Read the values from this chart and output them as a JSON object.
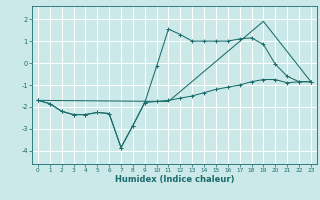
{
  "xlabel": "Humidex (Indice chaleur)",
  "background_color": "#cce9e9",
  "grid_color": "#ffffff",
  "line_color": "#1a6b6b",
  "xlim": [
    -0.5,
    23.5
  ],
  "ylim": [
    -4.6,
    2.6
  ],
  "yticks": [
    2,
    1,
    0,
    -1,
    -2,
    -3,
    -4
  ],
  "xticks": [
    0,
    1,
    2,
    3,
    4,
    5,
    6,
    7,
    8,
    9,
    10,
    11,
    12,
    13,
    14,
    15,
    16,
    17,
    18,
    19,
    20,
    21,
    22,
    23
  ],
  "line1_x": [
    0,
    1,
    2,
    3,
    4,
    5,
    6,
    7,
    8,
    9,
    10,
    11,
    12,
    13,
    14,
    15,
    16,
    17,
    18,
    19,
    20,
    21,
    22,
    23
  ],
  "line1_y": [
    -1.7,
    -1.85,
    -2.2,
    -2.35,
    -2.35,
    -2.25,
    -2.3,
    -3.85,
    -2.85,
    -1.8,
    -1.75,
    -1.7,
    -1.6,
    -1.5,
    -1.35,
    -1.2,
    -1.1,
    -1.0,
    -0.85,
    -0.75,
    -0.75,
    -0.9,
    -0.85,
    -0.85
  ],
  "line2_x": [
    0,
    1,
    2,
    3,
    4,
    5,
    6,
    7,
    8,
    9,
    10,
    11,
    12,
    13,
    14,
    15,
    16,
    17,
    18,
    19,
    20,
    21,
    22,
    23
  ],
  "line2_y": [
    -1.7,
    -1.85,
    -2.2,
    -2.35,
    -2.35,
    -2.25,
    -2.3,
    -3.85,
    -2.85,
    -1.8,
    -0.15,
    1.55,
    1.3,
    1.0,
    1.0,
    1.0,
    1.0,
    1.1,
    1.15,
    0.85,
    -0.05,
    -0.6,
    -0.85,
    -0.85
  ],
  "line3_x": [
    0,
    11,
    19,
    23
  ],
  "line3_y": [
    -1.7,
    -1.75,
    1.9,
    -0.85
  ]
}
